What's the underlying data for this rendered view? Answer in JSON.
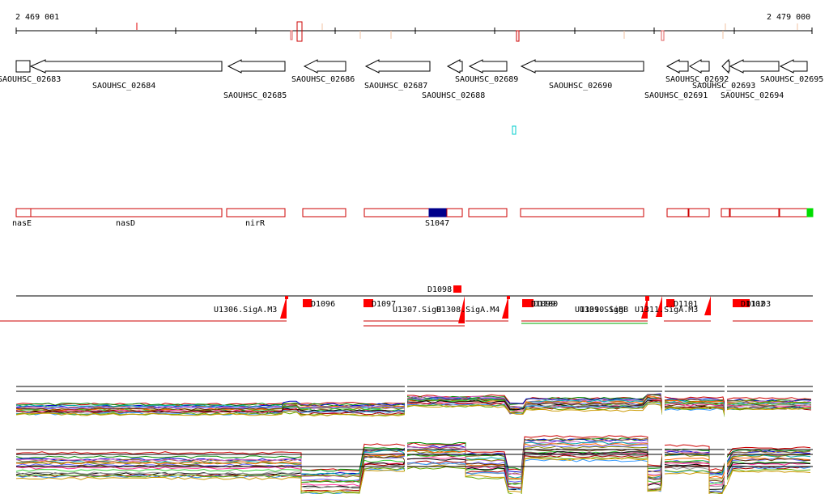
{
  "axis": {
    "start_label": "2 469 001",
    "end_label": "2 479 000",
    "start": 2469001,
    "end": 2479000
  },
  "genes": [
    {
      "label": "SAOUHSC_02683"
    },
    {
      "label": "SAOUHSC_02684"
    },
    {
      "label": "SAOUHSC_02685"
    },
    {
      "label": "SAOUHSC_02686"
    },
    {
      "label": "SAOUHSC_02687"
    },
    {
      "label": "SAOUHSC_02688"
    },
    {
      "label": "SAOUHSC_02689"
    },
    {
      "label": "SAOUHSC_02690"
    },
    {
      "label": "SAOUHSC_02691"
    },
    {
      "label": "SAOUHSC_02692"
    },
    {
      "label": "SAOUHSC_02693"
    },
    {
      "label": "SAOUHSC_02694"
    },
    {
      "label": "SAOUHSC_02695"
    }
  ],
  "features": [
    {
      "label": "nasE"
    },
    {
      "label": "nasD"
    },
    {
      "label": "nirR"
    },
    {
      "label": "S1047"
    }
  ],
  "regulatory": [
    {
      "label": "D1098"
    },
    {
      "label": "D1096"
    },
    {
      "label": "D1097"
    },
    {
      "label": "U1306.SigA.M3"
    },
    {
      "label": "U1307.SigB"
    },
    {
      "label": "U1308.SigA.M4"
    },
    {
      "label": "D1099"
    },
    {
      "label": "D1100"
    },
    {
      "label": "U1309.SigB"
    },
    {
      "label": "U1310.SigB"
    },
    {
      "label": "U1311.SigA.M3"
    },
    {
      "label": "D1101"
    },
    {
      "label": "D1102"
    },
    {
      "label": "D1103"
    }
  ],
  "colors": {
    "gene_outline": "#000000",
    "feature_outline": "#cc0000",
    "feature_highlight": "#00008b",
    "feature_end_marker": "#00dd00",
    "regulatory_fill": "#ff0000",
    "marker": "#00cccc"
  }
}
